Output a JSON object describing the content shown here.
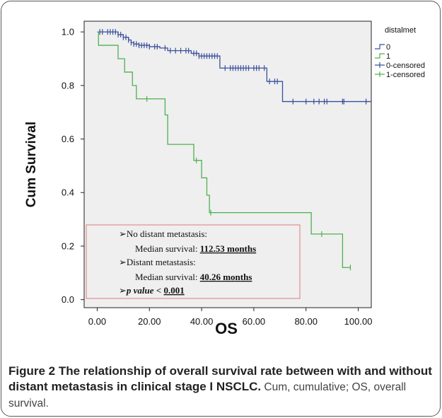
{
  "chart_data": {
    "type": "line",
    "subtype": "kaplan-meier",
    "xlabel": "OS",
    "ylabel": "Cum Survival",
    "xlim": [
      -5,
      105
    ],
    "ylim": [
      -0.03,
      1.04
    ],
    "x_ticks": [
      "0.00",
      "20.00",
      "40.00",
      "60.00",
      "80.00",
      "100.00"
    ],
    "x_tick_values": [
      0,
      20,
      40,
      60,
      80,
      100
    ],
    "y_ticks": [
      "0.0",
      "0.2",
      "0.4",
      "0.6",
      "0.8",
      "1.0"
    ],
    "y_tick_values": [
      0,
      0.2,
      0.4,
      0.6,
      0.8,
      1.0
    ],
    "grid": false,
    "legend_title": "distalmet",
    "legend_position": "top-right",
    "legend_labels": [
      "0",
      "1",
      "0-censored",
      "1-censored"
    ],
    "series": [
      {
        "name": "0",
        "color": "#3a4f9c",
        "steps": [
          [
            0,
            1.0
          ],
          [
            8,
            0.99
          ],
          [
            10,
            0.98
          ],
          [
            12,
            0.97
          ],
          [
            13,
            0.96
          ],
          [
            14,
            0.955
          ],
          [
            16,
            0.95
          ],
          [
            20,
            0.945
          ],
          [
            24,
            0.94
          ],
          [
            27,
            0.93
          ],
          [
            36,
            0.92
          ],
          [
            39,
            0.91
          ],
          [
            47,
            0.865
          ],
          [
            65,
            0.815
          ],
          [
            71,
            0.74
          ],
          [
            105,
            0.74
          ]
        ],
        "censored": [
          1,
          2,
          4,
          5,
          6,
          7,
          8,
          9,
          10,
          11,
          12,
          13,
          14,
          15,
          16,
          17,
          18,
          19,
          20,
          22,
          23,
          26,
          28,
          30,
          32,
          34,
          35,
          37,
          38,
          39,
          40,
          41,
          42,
          43,
          44,
          45,
          46,
          49,
          51,
          52,
          53,
          54,
          55,
          56,
          57,
          58,
          60,
          61,
          62,
          64,
          66,
          68,
          69,
          75,
          80,
          83,
          85,
          87,
          88,
          94,
          94.5,
          103
        ]
      },
      {
        "name": "1",
        "color": "#4eb050",
        "steps": [
          [
            0,
            1.0
          ],
          [
            0.5,
            0.95
          ],
          [
            8,
            0.9
          ],
          [
            10.5,
            0.85
          ],
          [
            13.5,
            0.8
          ],
          [
            15,
            0.75
          ],
          [
            26,
            0.69
          ],
          [
            27,
            0.58
          ],
          [
            37,
            0.52
          ],
          [
            40,
            0.455
          ],
          [
            42,
            0.39
          ],
          [
            43,
            0.325
          ],
          [
            82,
            0.245
          ],
          [
            94,
            0.12
          ],
          [
            97,
            0.12
          ]
        ],
        "censored": [
          19,
          38,
          43.5,
          86,
          97
        ]
      }
    ],
    "annotation_lines": [
      {
        "prefix": "➢",
        "text": "No distant metastasis:",
        "bold": ""
      },
      {
        "prefix": "",
        "text": "Median survival: ",
        "bold": "112.53 months"
      },
      {
        "prefix": "➢",
        "text": "Distant metastasis:",
        "bold": ""
      },
      {
        "prefix": "",
        "text": "Median survival: ",
        "bold": "40.26 months"
      },
      {
        "prefix": "➢",
        "text": "p value < ",
        "bold": "0.001"
      }
    ]
  },
  "caption": {
    "figure_label": "Figure 2",
    "title": " The relationship of overall survival rate between with and without distant metastasis in clinical stage I NSCLC.",
    "note": " Cum, cumulative; OS, overall survival."
  },
  "colors": {
    "plot_bg": "#efefef",
    "annotation_border": "#e07a7a",
    "frame": "#5a5a5a"
  }
}
